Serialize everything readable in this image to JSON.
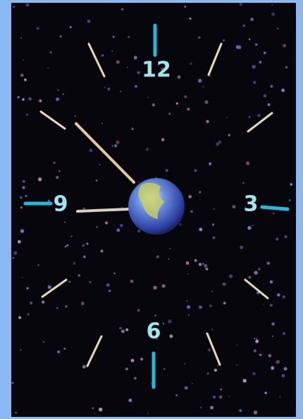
{
  "clock": {
    "numerals": [
      "12",
      "3",
      "6",
      "9"
    ]
  }
}
